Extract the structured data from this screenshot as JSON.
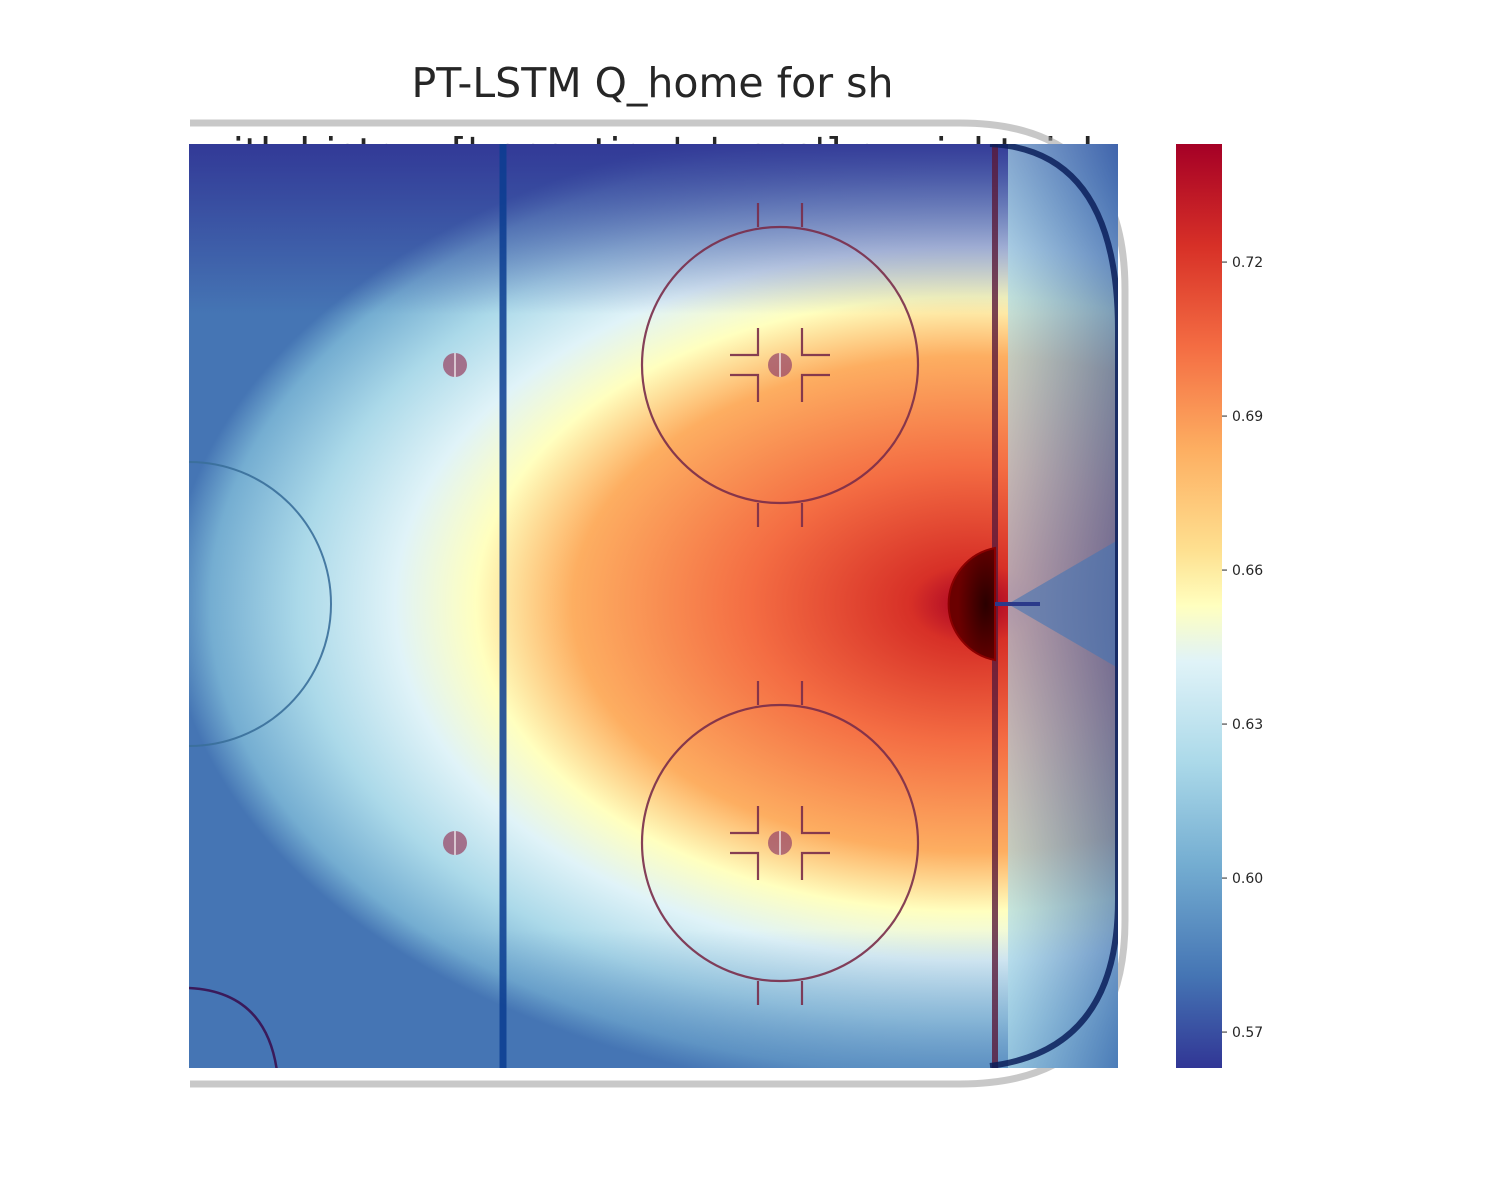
{
  "chart_data": {
    "type": "heatmap",
    "title_lines": [
      "PT-LSTM Q_home for sh",
      "with history:['reception', 'pass'] on right rink"
    ],
    "xlabel": "",
    "ylabel": "",
    "colormap": "RdYlBu_r",
    "colorbar": {
      "range": [
        0.563,
        0.743
      ],
      "ticks": [
        0.57,
        0.6,
        0.63,
        0.66,
        0.69,
        0.72
      ],
      "tick_labels": [
        "0.57",
        "0.60",
        "0.63",
        "0.66",
        "0.69",
        "0.72"
      ]
    },
    "peak": {
      "value": 0.74,
      "location": "in front of the right goal crease"
    },
    "background": "right half of hockey rink: blue line, faceoff circles, goal line, crease",
    "grid": false,
    "legend": "none",
    "colors": {
      "low": "#313695",
      "mid": "#ffffbf",
      "high": "#a50026",
      "blue_line": "#0b3d91",
      "goal_line": "#8b1a1a",
      "circles": "#8b2323"
    }
  }
}
